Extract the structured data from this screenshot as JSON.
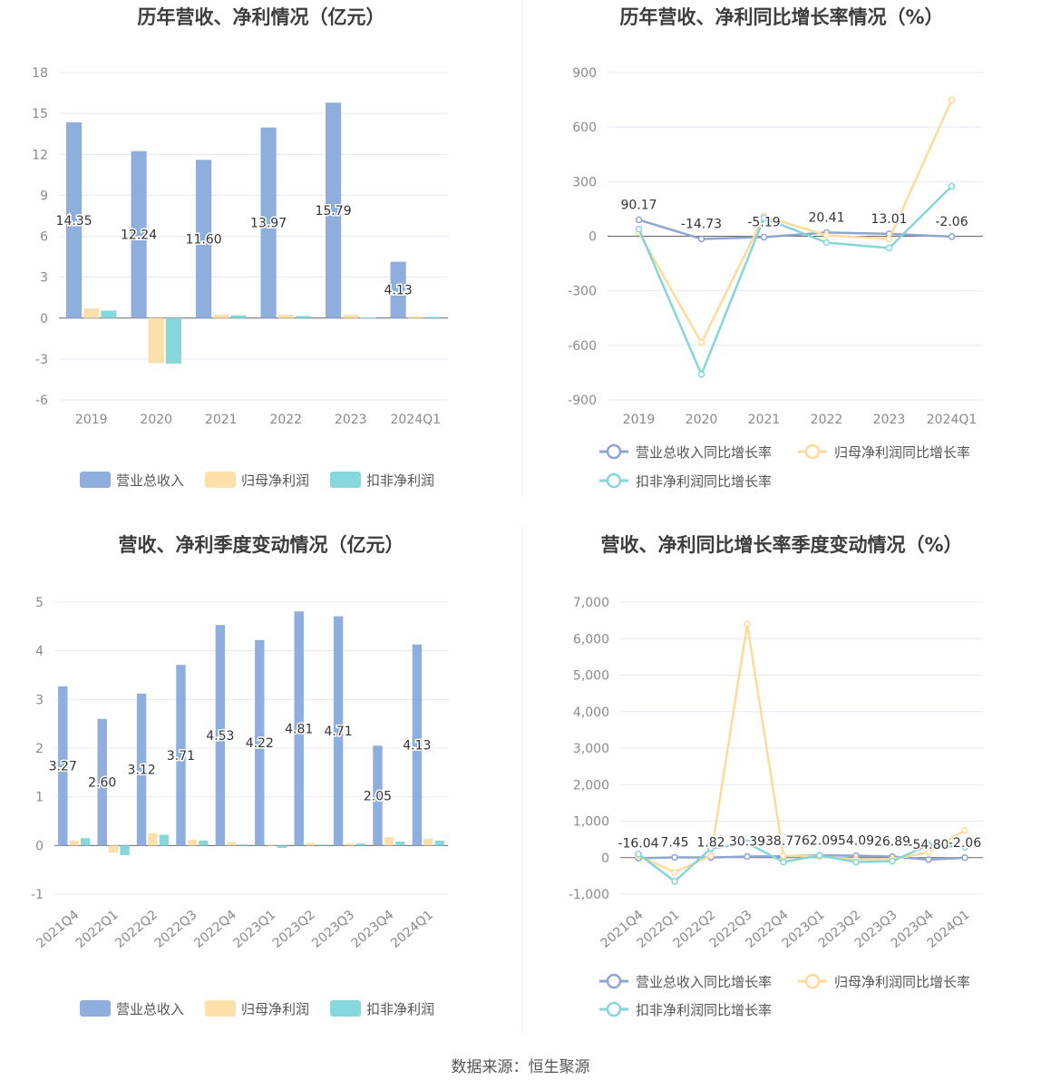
{
  "colors": {
    "revenue": "#8eaedd",
    "net_profit": "#fddfaa",
    "deducted_profit": "#87d8dc",
    "line_revenue": "#8ea4d2",
    "line_net_profit": "#fddb9a",
    "line_deducted": "#86d6d8"
  },
  "footer": {
    "source": "数据来源：恒生聚源"
  },
  "chart_data": [
    {
      "type": "bar",
      "title": "历年营收、净利情况（亿元）",
      "categories": [
        "2019",
        "2020",
        "2021",
        "2022",
        "2023",
        "2024Q1"
      ],
      "ylim": [
        -6,
        18
      ],
      "yticks": [
        -6,
        -3,
        0,
        3,
        6,
        9,
        12,
        15,
        18
      ],
      "ytick_labels": [
        "-6",
        "-3",
        "0",
        "3",
        "6",
        "9",
        "12",
        "15",
        "18"
      ],
      "series": [
        {
          "name": "营业总收入",
          "values": [
            14.35,
            12.24,
            11.6,
            13.97,
            15.79,
            4.13
          ],
          "labels": [
            "14.35",
            "12.24",
            "11.60",
            "13.97",
            "15.79",
            "4.13"
          ]
        },
        {
          "name": "归母净利润",
          "values": [
            0.7,
            -3.3,
            0.25,
            0.25,
            0.22,
            0.1
          ]
        },
        {
          "name": "扣非净利润",
          "values": [
            0.55,
            -3.35,
            0.2,
            0.15,
            0.05,
            0.08
          ]
        }
      ],
      "legend_position": "bottom",
      "grid": true
    },
    {
      "type": "line",
      "title": "历年营收、净利同比增长率情况（%）",
      "categories": [
        "2019",
        "2020",
        "2021",
        "2022",
        "2023",
        "2024Q1"
      ],
      "ylim": [
        -900,
        900
      ],
      "yticks": [
        -900,
        -600,
        -300,
        0,
        300,
        600,
        900
      ],
      "ytick_labels": [
        "-900",
        "-600",
        "-300",
        "0",
        "300",
        "600",
        "900"
      ],
      "series": [
        {
          "name": "营业总收入同比增长率",
          "values": [
            90.17,
            -14.73,
            -5.19,
            20.41,
            13.01,
            -2.06
          ],
          "labels": [
            "90.17",
            "-14.73",
            "-5.19",
            "20.41",
            "13.01",
            "-2.06"
          ]
        },
        {
          "name": "归母净利润同比增长率",
          "values": [
            20,
            -585,
            110,
            5,
            -15,
            750
          ]
        },
        {
          "name": "扣非净利润同比增长率",
          "values": [
            40,
            -760,
            100,
            -35,
            -65,
            275
          ]
        }
      ],
      "legend_position": "bottom",
      "grid": true
    },
    {
      "type": "bar",
      "title": "营收、净利季度变动情况（亿元）",
      "categories": [
        "2021Q4",
        "2022Q1",
        "2022Q2",
        "2022Q3",
        "2022Q4",
        "2023Q1",
        "2023Q2",
        "2023Q3",
        "2023Q4",
        "2024Q1"
      ],
      "ylim": [
        -1,
        5
      ],
      "yticks": [
        -1,
        0,
        1,
        2,
        3,
        4,
        5
      ],
      "ytick_labels": [
        "-1",
        "0",
        "1",
        "2",
        "3",
        "4",
        "5"
      ],
      "series": [
        {
          "name": "营业总收入",
          "values": [
            3.27,
            2.6,
            3.12,
            3.71,
            4.53,
            4.22,
            4.81,
            4.71,
            2.05,
            4.13
          ],
          "labels": [
            "3.27",
            "2.60",
            "3.12",
            "3.71",
            "4.53",
            "4.22",
            "4.81",
            "4.71",
            "2.05",
            "4.13"
          ]
        },
        {
          "name": "归母净利润",
          "values": [
            0.1,
            -0.15,
            0.25,
            0.12,
            0.07,
            0.02,
            0.05,
            0.04,
            0.17,
            0.14
          ]
        },
        {
          "name": "扣非净利润",
          "values": [
            0.15,
            -0.2,
            0.22,
            0.1,
            0.02,
            -0.05,
            0.02,
            0.04,
            0.08,
            0.1
          ]
        }
      ],
      "legend_position": "bottom",
      "grid": true
    },
    {
      "type": "line",
      "title": "营收、净利同比增长率季度变动情况（%）",
      "categories": [
        "2021Q4",
        "2022Q1",
        "2022Q2",
        "2022Q3",
        "2022Q4",
        "2023Q1",
        "2023Q2",
        "2023Q3",
        "2023Q4",
        "2024Q1"
      ],
      "ylim": [
        -1000,
        7000
      ],
      "yticks": [
        -1000,
        0,
        1000,
        2000,
        3000,
        4000,
        5000,
        6000,
        7000
      ],
      "ytick_labels": [
        "-1,000",
        "0",
        "1,000",
        "2,000",
        "3,000",
        "4,000",
        "5,000",
        "6,000",
        "7,000"
      ],
      "series": [
        {
          "name": "营业总收入同比增长率",
          "values": [
            -16.04,
            7.45,
            1.82,
            30.39,
            38.77,
            62.09,
            54.09,
            26.89,
            -54.8,
            -2.06
          ],
          "labels": [
            "-16.04",
            "7.45",
            "1.82",
            "30.39",
            "38.77",
            "62.09",
            "54.09",
            "26.89",
            "-54.80",
            "-2.06"
          ]
        },
        {
          "name": "归母净利润同比增长率",
          "values": [
            50,
            -400,
            50,
            6400,
            50,
            30,
            -50,
            -40,
            150,
            750
          ]
        },
        {
          "name": "扣非净利润同比增长率",
          "values": [
            100,
            -650,
            250,
            400,
            -120,
            60,
            -120,
            -100,
            350,
            280
          ]
        }
      ],
      "legend_position": "bottom",
      "grid": true
    }
  ]
}
